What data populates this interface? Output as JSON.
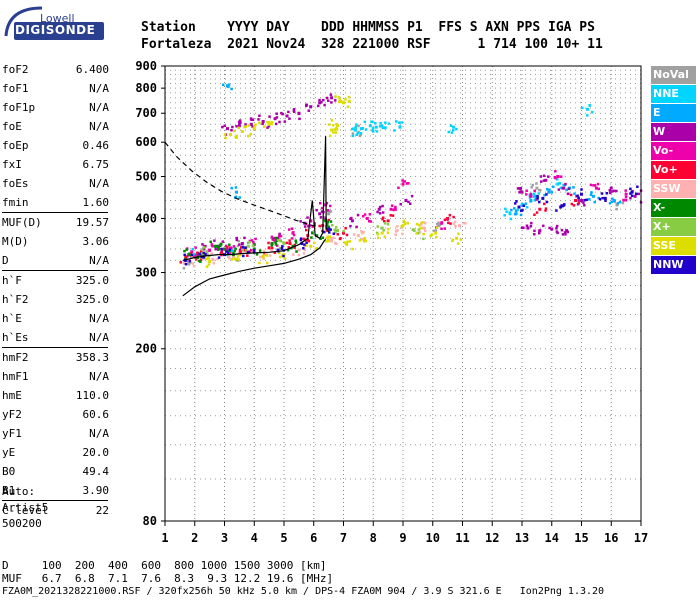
{
  "logo": {
    "brand_top": "Lowell",
    "brand_main": "DIGISONDE"
  },
  "header": {
    "line1": "Station    YYYY DAY    DDD HHMMSS P1  FFS S AXN PPS IGA PS",
    "line2": "Fortaleza  2021 Nov24  328 221000 RSF      1 714 100 10+ 11"
  },
  "params": [
    {
      "label": "foF2",
      "value": "6.400"
    },
    {
      "label": "foF1",
      "value": "N/A"
    },
    {
      "label": "foF1p",
      "value": "N/A"
    },
    {
      "label": "foE",
      "value": "N/A"
    },
    {
      "label": "foEp",
      "value": "0.46"
    },
    {
      "label": "fxI",
      "value": "6.75"
    },
    {
      "label": "foEs",
      "value": "N/A"
    },
    {
      "label": "fmin",
      "value": "1.60"
    },
    {
      "sep": true
    },
    {
      "label": "MUF(D)",
      "value": "19.57"
    },
    {
      "label": "M(D)",
      "value": "3.06"
    },
    {
      "label": "D",
      "value": "N/A"
    },
    {
      "sep": true
    },
    {
      "label": "h`F",
      "value": "325.0"
    },
    {
      "label": "h`F2",
      "value": "325.0"
    },
    {
      "label": "h`E",
      "value": "N/A"
    },
    {
      "label": "h`Es",
      "value": "N/A"
    },
    {
      "sep": true
    },
    {
      "label": "hmF2",
      "value": "358.3"
    },
    {
      "label": "hmF1",
      "value": "N/A"
    },
    {
      "label": "hmE",
      "value": "110.0"
    },
    {
      "label": "yF2",
      "value": "60.6"
    },
    {
      "label": "yF1",
      "value": "N/A"
    },
    {
      "label": "yE",
      "value": "20.0"
    },
    {
      "label": "B0",
      "value": "49.4"
    },
    {
      "label": "B1",
      "value": "3.90"
    },
    {
      "sep": true
    },
    {
      "label": "C-level",
      "value": "22"
    }
  ],
  "auto": {
    "line1": "Auto:",
    "line2": "Artist5",
    "line3": "500200"
  },
  "legend": [
    {
      "label": "NoVal",
      "color": "#a0a0a0"
    },
    {
      "label": "NNE",
      "color": "#00d4ff"
    },
    {
      "label": "E",
      "color": "#00aaff"
    },
    {
      "label": "W",
      "color": "#aa00aa"
    },
    {
      "label": "Vo-",
      "color": "#ee00aa"
    },
    {
      "label": "Vo+",
      "color": "#ff0033"
    },
    {
      "label": "SSW",
      "color": "#ffb0b0"
    },
    {
      "label": "X-",
      "color": "#008800"
    },
    {
      "label": "X+",
      "color": "#88cc44"
    },
    {
      "label": "SSE",
      "color": "#dddd00"
    },
    {
      "label": "NNW",
      "color": "#2200cc"
    }
  ],
  "footer": {
    "line1": "D     100  200  400  600  800 1000 1500 3000 [km]",
    "line2": "MUF   6.7  6.8  7.1  7.6  8.3  9.3 12.2 19.6 [MHz]",
    "line3": "FZA0M_2021328221000.RSF / 320fx256h 50 kHz 5.0 km / DPS-4 FZA0M 904 / 3.9 S 321.6 E   Ion2Png 1.3.20"
  },
  "chart_data": {
    "type": "scatter",
    "title": "",
    "xlabel": "",
    "ylabel": "",
    "x_range": [
      1,
      17
    ],
    "y_range": [
      80,
      900
    ],
    "y_scale": "log",
    "x_ticks": [
      1,
      2,
      3,
      4,
      5,
      6,
      7,
      8,
      9,
      10,
      11,
      12,
      13,
      14,
      15,
      16,
      17
    ],
    "y_ticks": [
      80,
      200,
      300,
      400,
      500,
      600,
      700,
      800,
      900
    ],
    "grid": true,
    "series": [
      {
        "name": "NoVal",
        "points": [
          [
            1.8,
            315
          ],
          [
            2.4,
            330
          ],
          [
            3.6,
            345
          ],
          [
            6.5,
            410
          ],
          [
            10.2,
            385
          ],
          [
            13.5,
            470
          ],
          [
            16.2,
            430
          ],
          [
            7.4,
            640
          ]
        ]
      },
      {
        "name": "NNE",
        "points": [
          [
            7.4,
            640
          ],
          [
            7.6,
            645
          ],
          [
            7.9,
            655
          ],
          [
            8.1,
            650
          ],
          [
            8.4,
            648
          ],
          [
            8.9,
            650
          ],
          [
            10.7,
            650
          ],
          [
            12.6,
            410
          ],
          [
            13.0,
            430
          ],
          [
            13.4,
            455
          ],
          [
            14.2,
            480
          ],
          [
            15.2,
            715
          ],
          [
            2.0,
            330
          ],
          [
            3.2,
            335
          ]
        ]
      },
      {
        "name": "E",
        "points": [
          [
            12.8,
            410
          ],
          [
            13.3,
            440
          ],
          [
            13.9,
            460
          ],
          [
            14.6,
            470
          ],
          [
            15.4,
            450
          ],
          [
            16.1,
            440
          ],
          [
            3.1,
            810
          ],
          [
            3.4,
            460
          ]
        ]
      },
      {
        "name": "W",
        "points": [
          [
            3.1,
            645
          ],
          [
            3.5,
            655
          ],
          [
            3.9,
            660
          ],
          [
            4.3,
            670
          ],
          [
            4.7,
            680
          ],
          [
            5.1,
            690
          ],
          [
            5.5,
            700
          ],
          [
            5.9,
            725
          ],
          [
            6.2,
            740
          ],
          [
            6.6,
            760
          ],
          [
            13.2,
            380
          ],
          [
            13.6,
            375
          ],
          [
            14.0,
            378
          ],
          [
            14.5,
            375
          ],
          [
            2.3,
            340
          ],
          [
            2.8,
            345
          ],
          [
            3.6,
            350
          ],
          [
            4.8,
            360
          ],
          [
            5.7,
            390
          ],
          [
            6.2,
            410
          ],
          [
            7.3,
            395
          ],
          [
            8.2,
            420
          ],
          [
            9.1,
            440
          ],
          [
            13.0,
            460
          ],
          [
            13.8,
            490
          ],
          [
            14.4,
            470
          ],
          [
            15.0,
            440
          ],
          [
            16.0,
            470
          ],
          [
            16.8,
            450
          ]
        ]
      },
      {
        "name": "Vo-",
        "points": [
          [
            1.9,
            335
          ],
          [
            2.5,
            338
          ],
          [
            3.2,
            342
          ],
          [
            4.0,
            348
          ],
          [
            4.7,
            355
          ],
          [
            5.3,
            370
          ],
          [
            5.9,
            395
          ],
          [
            6.4,
            430
          ],
          [
            7.8,
            400
          ],
          [
            8.6,
            420
          ],
          [
            9.0,
            480
          ],
          [
            10.3,
            390
          ],
          [
            13.3,
            450
          ],
          [
            14.2,
            500
          ],
          [
            15.5,
            470
          ],
          [
            16.5,
            455
          ]
        ]
      },
      {
        "name": "Vo+",
        "points": [
          [
            1.7,
            325
          ],
          [
            2.2,
            330
          ],
          [
            2.9,
            333
          ],
          [
            3.7,
            338
          ],
          [
            4.5,
            342
          ],
          [
            5.2,
            350
          ],
          [
            5.8,
            365
          ],
          [
            6.3,
            385
          ],
          [
            7.0,
            370
          ],
          [
            8.5,
            395
          ],
          [
            10.5,
            400
          ],
          [
            13.6,
            420
          ],
          [
            14.8,
            440
          ]
        ]
      },
      {
        "name": "SSW",
        "points": [
          [
            1.8,
            320
          ],
          [
            2.6,
            322
          ],
          [
            3.3,
            326
          ],
          [
            4.4,
            330
          ],
          [
            5.5,
            338
          ],
          [
            6.6,
            355
          ],
          [
            7.5,
            365
          ],
          [
            8.8,
            375
          ],
          [
            9.7,
            380
          ],
          [
            10.9,
            385
          ]
        ]
      },
      {
        "name": "X-",
        "points": [
          [
            1.8,
            330
          ],
          [
            2.1,
            325
          ],
          [
            2.7,
            345
          ],
          [
            3.0,
            340
          ],
          [
            3.3,
            330
          ],
          [
            4.0,
            340
          ],
          [
            4.6,
            350
          ],
          [
            5.3,
            345
          ],
          [
            6.1,
            365
          ],
          [
            6.4,
            395
          ]
        ]
      },
      {
        "name": "X+",
        "points": [
          [
            2.4,
            335
          ],
          [
            3.8,
            345
          ],
          [
            5.0,
            350
          ],
          [
            6.8,
            375
          ],
          [
            8.3,
            380
          ],
          [
            9.5,
            370
          ]
        ]
      },
      {
        "name": "SSE",
        "points": [
          [
            3.2,
            625
          ],
          [
            3.6,
            635
          ],
          [
            4.0,
            645
          ],
          [
            4.5,
            660
          ],
          [
            6.6,
            640
          ],
          [
            6.8,
            655
          ],
          [
            7.0,
            740
          ],
          [
            6.9,
            745
          ],
          [
            2.5,
            318
          ],
          [
            3.4,
            322
          ],
          [
            4.3,
            326
          ],
          [
            5.0,
            330
          ],
          [
            5.9,
            345
          ],
          [
            6.5,
            355
          ],
          [
            7.1,
            350
          ],
          [
            7.7,
            355
          ],
          [
            8.3,
            370
          ],
          [
            9.0,
            385
          ],
          [
            9.6,
            380
          ],
          [
            10.1,
            370
          ],
          [
            10.8,
            360
          ]
        ]
      },
      {
        "name": "NNW",
        "points": [
          [
            1.7,
            320
          ],
          [
            2.3,
            326
          ],
          [
            3.0,
            330
          ],
          [
            3.8,
            334
          ],
          [
            4.8,
            338
          ],
          [
            5.6,
            350
          ],
          [
            6.5,
            378
          ],
          [
            12.9,
            425
          ],
          [
            13.7,
            445
          ],
          [
            14.3,
            425
          ],
          [
            15.0,
            455
          ],
          [
            15.8,
            445
          ],
          [
            16.7,
            460
          ]
        ]
      }
    ],
    "trace_virtual_height": [
      [
        1.6,
        320
      ],
      [
        2.0,
        325
      ],
      [
        2.4,
        328
      ],
      [
        2.8,
        330
      ],
      [
        3.2,
        330
      ],
      [
        3.6,
        332
      ],
      [
        4.0,
        333
      ],
      [
        4.5,
        334
      ],
      [
        5.0,
        337
      ],
      [
        5.5,
        348
      ],
      [
        5.8,
        360
      ],
      [
        5.95,
        440
      ],
      [
        6.05,
        365
      ],
      [
        6.2,
        360
      ],
      [
        6.3,
        370
      ],
      [
        6.4,
        620
      ],
      [
        6.42,
        380
      ],
      [
        6.5,
        372
      ]
    ],
    "trace_true_height": [
      [
        1.6,
        265
      ],
      [
        2.0,
        278
      ],
      [
        2.5,
        290
      ],
      [
        3.0,
        296
      ],
      [
        3.5,
        302
      ],
      [
        4.0,
        307
      ],
      [
        4.5,
        311
      ],
      [
        5.0,
        315
      ],
      [
        5.5,
        322
      ],
      [
        5.9,
        330
      ],
      [
        6.2,
        342
      ],
      [
        6.35,
        355
      ],
      [
        6.4,
        358
      ]
    ],
    "trace_muf": [
      [
        1.0,
        600
      ],
      [
        1.4,
        555
      ],
      [
        1.9,
        515
      ],
      [
        2.4,
        485
      ],
      [
        2.9,
        462
      ],
      [
        3.4,
        445
      ],
      [
        3.9,
        432
      ],
      [
        4.4,
        420
      ],
      [
        4.9,
        408
      ],
      [
        5.4,
        396
      ],
      [
        5.9,
        386
      ],
      [
        6.2,
        382
      ]
    ]
  }
}
